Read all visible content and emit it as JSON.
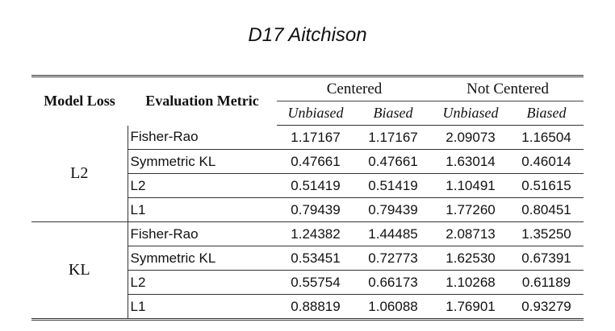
{
  "title": "D17 Aitchison",
  "header": {
    "model_loss": "Model Loss",
    "evaluation_metric": "Evaluation Metric",
    "group_centered": "Centered",
    "group_not_centered": "Not Centered",
    "sub_unbiased": "Unbiased",
    "sub_biased": "Biased"
  },
  "rows": [
    {
      "loss": "L2",
      "metric": "Fisher-Rao",
      "c_unbiased": "1.17167",
      "c_biased": "1.17167",
      "nc_unbiased": "2.09073",
      "nc_biased": "1.16504"
    },
    {
      "loss": "L2",
      "metric": "Symmetric KL",
      "c_unbiased": "0.47661",
      "c_biased": "0.47661",
      "nc_unbiased": "1.63014",
      "nc_biased": "0.46014"
    },
    {
      "loss": "L2",
      "metric": "L2",
      "c_unbiased": "0.51419",
      "c_biased": "0.51419",
      "nc_unbiased": "1.10491",
      "nc_biased": "0.51615"
    },
    {
      "loss": "L2",
      "metric": "L1",
      "c_unbiased": "0.79439",
      "c_biased": "0.79439",
      "nc_unbiased": "1.77260",
      "nc_biased": "0.80451"
    },
    {
      "loss": "KL",
      "metric": "Fisher-Rao",
      "c_unbiased": "1.24382",
      "c_biased": "1.44485",
      "nc_unbiased": "2.08713",
      "nc_biased": "1.35250"
    },
    {
      "loss": "KL",
      "metric": "Symmetric KL",
      "c_unbiased": "0.53451",
      "c_biased": "0.72773",
      "nc_unbiased": "1.62530",
      "nc_biased": "0.67391"
    },
    {
      "loss": "KL",
      "metric": "L2",
      "c_unbiased": "0.55754",
      "c_biased": "0.66173",
      "nc_unbiased": "1.10268",
      "nc_biased": "0.61189"
    },
    {
      "loss": "KL",
      "metric": "L1",
      "c_unbiased": "0.88819",
      "c_biased": "1.06088",
      "nc_unbiased": "1.76901",
      "nc_biased": "0.93279"
    }
  ]
}
